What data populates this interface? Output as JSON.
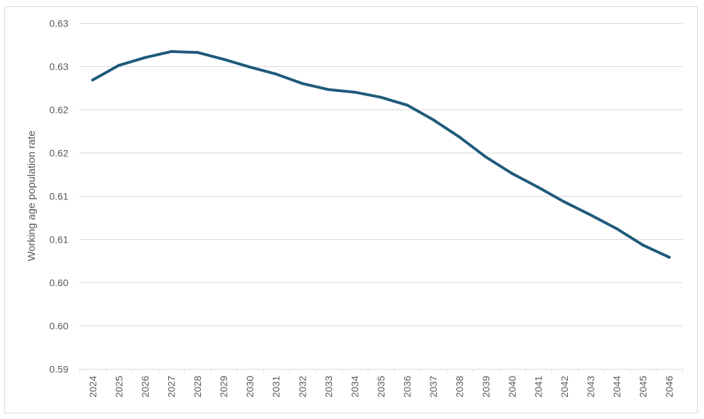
{
  "chart_data": {
    "type": "line",
    "title": "",
    "xlabel": "",
    "ylabel": "Working age population rate",
    "ylim": [
      0.595,
      0.635
    ],
    "y_tick_values": [
      0.595,
      0.6,
      0.605,
      0.61,
      0.615,
      0.62,
      0.625,
      0.63,
      0.635
    ],
    "y_tick_labels": [
      "0.59",
      "0.60",
      "0.60",
      "0.61",
      "0.61",
      "0.62",
      "0.62",
      "0.63",
      "0.63"
    ],
    "x": [
      "2024",
      "2025",
      "2026",
      "2027",
      "2028",
      "2029",
      "2030",
      "2031",
      "2032",
      "2033",
      "2034",
      "2035",
      "2036",
      "2037",
      "2038",
      "2039",
      "2040",
      "2041",
      "2042",
      "2043",
      "2044",
      "2045",
      "2046"
    ],
    "series": [
      {
        "name": "",
        "color": "#1f5a7a",
        "values": [
          0.6284,
          0.6301,
          0.631,
          0.6317,
          0.6316,
          0.6308,
          0.6299,
          0.6291,
          0.628,
          0.6273,
          0.627,
          0.6264,
          0.6255,
          0.6238,
          0.6218,
          0.6195,
          0.6176,
          0.616,
          0.6143,
          0.6128,
          0.6112,
          0.6093,
          0.6079
        ]
      }
    ],
    "grid": true,
    "legend": "none"
  }
}
